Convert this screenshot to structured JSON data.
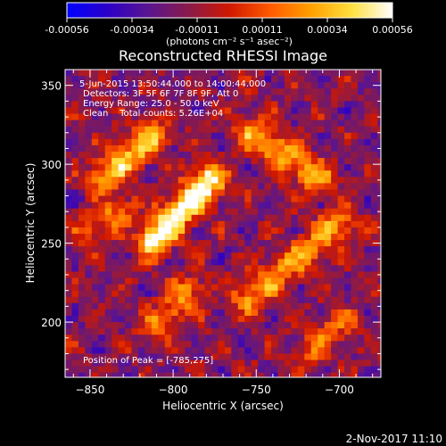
{
  "chart_data": {
    "type": "heatmap",
    "title": "Reconstructed RHESSI Image",
    "xlabel": "Heliocentric X (arcsec)",
    "ylabel": "Heliocentric Y (arcsec)",
    "xlim": [
      -865,
      -675
    ],
    "ylim": [
      165,
      360
    ],
    "xticks": [
      -850,
      -800,
      -750,
      -700
    ],
    "yticks": [
      200,
      250,
      300,
      350
    ],
    "colorbar": {
      "label": "(photons cm⁻² s⁻¹ asec⁻²)",
      "range": [
        -0.00056,
        0.00056
      ],
      "ticks": [
        "-0.00056",
        "-0.00034",
        "-0.00011",
        "0.00011",
        "0.00034",
        "0.00056"
      ],
      "colormap": [
        "#0000ff",
        "#2b00c8",
        "#5a1590",
        "#8a1a4a",
        "#d01800",
        "#ff5a00",
        "#ffa000",
        "#ffe040",
        "#ffffff"
      ]
    },
    "peak_position": [
      -785,
      275
    ],
    "structures": [
      {
        "kind": "ridge",
        "from": [
          -812,
          252
        ],
        "to": [
          -778,
          290
        ],
        "intensity": 1.0
      },
      {
        "kind": "ridge",
        "from": [
          -842,
          292
        ],
        "to": [
          -812,
          318
        ],
        "intensity": 0.7
      },
      {
        "kind": "ridge",
        "from": [
          -752,
          320
        ],
        "to": [
          -712,
          290
        ],
        "intensity": 0.62
      },
      {
        "kind": "ridge",
        "from": [
          -755,
          215
        ],
        "to": [
          -700,
          262
        ],
        "intensity": 0.55
      },
      {
        "kind": "ridge",
        "from": [
          -810,
          195
        ],
        "to": [
          -790,
          220
        ],
        "intensity": 0.48
      },
      {
        "kind": "ridge",
        "from": [
          -850,
          258
        ],
        "to": [
          -830,
          272
        ],
        "intensity": 0.45
      },
      {
        "kind": "ridge",
        "from": [
          -720,
          180
        ],
        "to": [
          -700,
          200
        ],
        "intensity": 0.38
      }
    ]
  },
  "annotations": {
    "time_range": "5-Jun-2015 13:50:44.000 to 14:00:44.000",
    "detectors": "Detectors: 3F 5F 6F 7F 8F 9F, Att 0",
    "energy_range": "Energy Range: 25.0 - 50.0 keV",
    "clean": "Clean    Total counts: 5.26E+04",
    "peak": "Position of Peak = [-785,275]"
  },
  "footer": {
    "date": "2-Nov-2017 11:10"
  }
}
